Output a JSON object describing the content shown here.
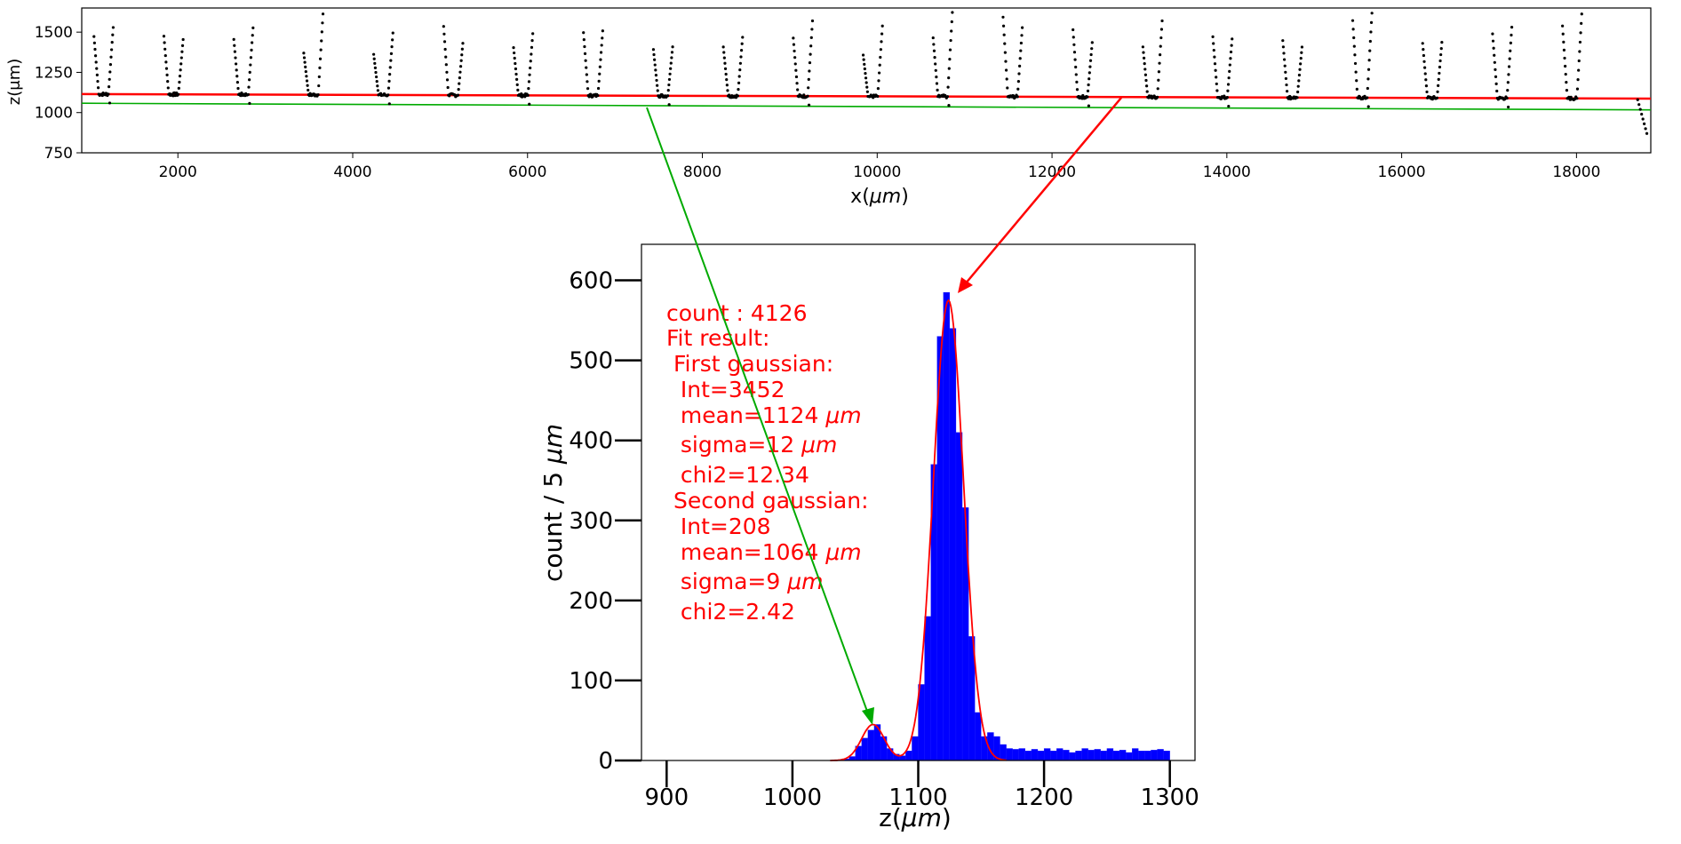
{
  "chart_data": [
    {
      "type": "scatter",
      "xlabel_prefix": "x(",
      "xlabel_unit": "μm",
      "xlabel_suffix": ")",
      "ylabel": "z(μm)",
      "xlim": [
        900,
        18850
      ],
      "ylim": [
        750,
        1650
      ],
      "xticks": [
        2000,
        4000,
        6000,
        8000,
        10000,
        12000,
        14000,
        16000,
        18000
      ],
      "yticks": [
        750,
        1000,
        1250,
        1500
      ],
      "fit_lines": [
        {
          "color": "#ff0000",
          "x": [
            900,
            18850
          ],
          "y": [
            1115,
            1087
          ]
        },
        {
          "color": "#00aa00",
          "x": [
            900,
            18850
          ],
          "y": [
            1058,
            1017
          ]
        }
      ],
      "groups_centers": [
        1150,
        1950,
        2750,
        3550,
        4350,
        5150,
        5950,
        6750,
        7550,
        8350,
        9150,
        9950,
        10750,
        11550,
        12350,
        13150,
        13950,
        14750,
        15550,
        16350,
        17150,
        17950
      ],
      "points_color": "#000000"
    },
    {
      "type": "bar",
      "xlabel_prefix": "z(",
      "xlabel_unit": "μm",
      "xlabel_suffix": ")",
      "ylabel_prefix": "count / 5 ",
      "ylabel_unit": "μm",
      "xlim": [
        880,
        1320
      ],
      "ylim": [
        0,
        645
      ],
      "xticks": [
        900,
        1000,
        1100,
        1200,
        1300
      ],
      "yticks": [
        0,
        100,
        200,
        300,
        400,
        500,
        600
      ],
      "bin_width": 5,
      "bin_start": 1040,
      "values": [
        2,
        5,
        18,
        28,
        38,
        45,
        30,
        15,
        8,
        6,
        12,
        30,
        95,
        180,
        370,
        530,
        585,
        540,
        410,
        316,
        155,
        60,
        30,
        35,
        30,
        20,
        15,
        14,
        15,
        12,
        14,
        12,
        15,
        12,
        15,
        13,
        10,
        12,
        15,
        13,
        14,
        12,
        15,
        12,
        13,
        10,
        15,
        12,
        12,
        13,
        14,
        12
      ],
      "bar_color": "#0000ff",
      "fit": {
        "color": "#ff0000",
        "g1": {
          "amp": 575,
          "mean": 1124,
          "sigma": 12
        },
        "g2": {
          "amp": 45,
          "mean": 1064,
          "sigma": 9
        }
      },
      "annotation": {
        "count": "count : 4126",
        "fit_result": "Fit result:",
        "first": " First gaussian:",
        "int1": "  Int=3452",
        "mean1_text": "  mean=1124 ",
        "sigma1_text": "  sigma=12 ",
        "chi1": "  chi2=12.34",
        "second": " Second gaussian:",
        "int2": "  Int=208",
        "mean2_text": "  mean=1064 ",
        "sigma2_text": "  sigma=9 ",
        "chi2": "  chi2=2.42",
        "unit": "μm"
      }
    }
  ]
}
